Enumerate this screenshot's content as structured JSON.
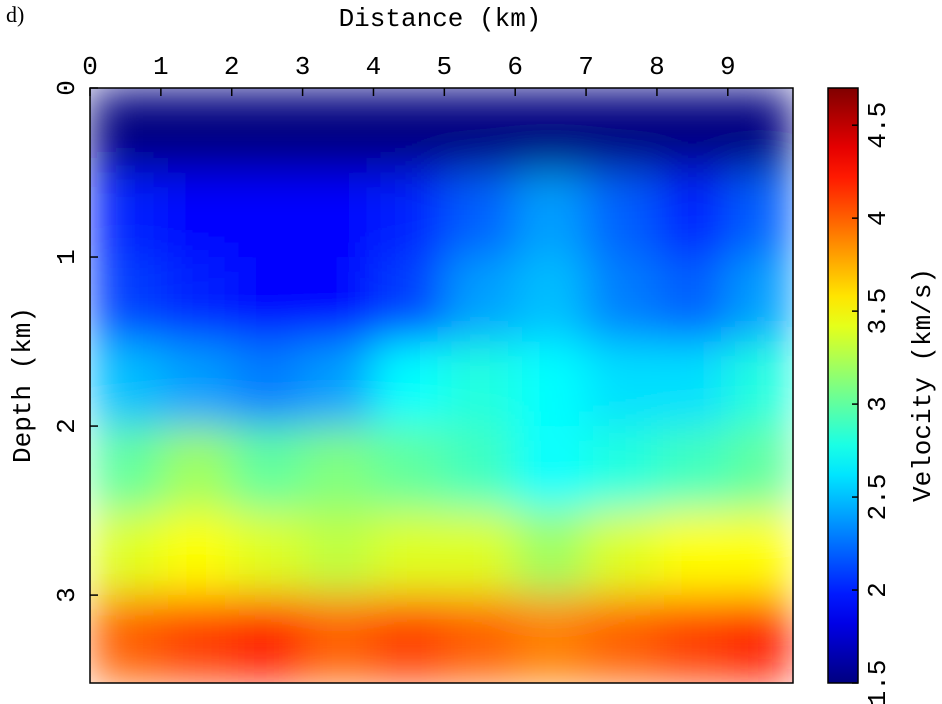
{
  "chart_data": {
    "type": "heatmap",
    "title": "d)",
    "xlabel": "Distance (km)",
    "ylabel": "Depth (km)",
    "colorbar_label": "Velocity (km/s)",
    "colormap": "jet",
    "x_axis_position": "top",
    "y_inverted": true,
    "x": [
      0.5,
      1.5,
      2.5,
      3.5,
      4.5,
      5.5,
      6.5,
      7.5,
      8.5,
      9.5
    ],
    "y": [
      0.25,
      0.75,
      1.25,
      1.75,
      2.25,
      2.75,
      3.25
    ],
    "values": [
      [
        1.5,
        1.5,
        1.5,
        1.5,
        1.5,
        1.5,
        1.5,
        1.5,
        1.5,
        1.5
      ],
      [
        2.0,
        1.9,
        1.9,
        1.9,
        2.0,
        2.2,
        2.4,
        2.2,
        2.0,
        2.2
      ],
      [
        2.1,
        2.0,
        1.9,
        1.9,
        2.1,
        2.4,
        2.5,
        2.3,
        2.2,
        2.4
      ],
      [
        2.5,
        2.4,
        2.3,
        2.4,
        2.7,
        2.8,
        2.7,
        2.6,
        2.6,
        2.8
      ],
      [
        3.0,
        3.2,
        3.0,
        3.1,
        3.0,
        2.9,
        2.7,
        2.8,
        2.9,
        3.0
      ],
      [
        3.4,
        3.5,
        3.4,
        3.3,
        3.4,
        3.4,
        3.2,
        3.4,
        3.5,
        3.5
      ],
      [
        4.0,
        4.1,
        4.2,
        4.0,
        4.1,
        4.0,
        3.9,
        4.0,
        4.1,
        4.2
      ]
    ],
    "xlim": [
      0,
      9.92
    ],
    "xticks": [
      0,
      1,
      2,
      3,
      4,
      5,
      6,
      7,
      8,
      9
    ],
    "ylim": [
      0,
      3.52
    ],
    "yticks": [
      0,
      1,
      2,
      3
    ],
    "clim": [
      1.5,
      4.7
    ],
    "cticks": [
      1.5,
      2,
      2.5,
      3,
      3.5,
      4,
      4.5
    ]
  }
}
